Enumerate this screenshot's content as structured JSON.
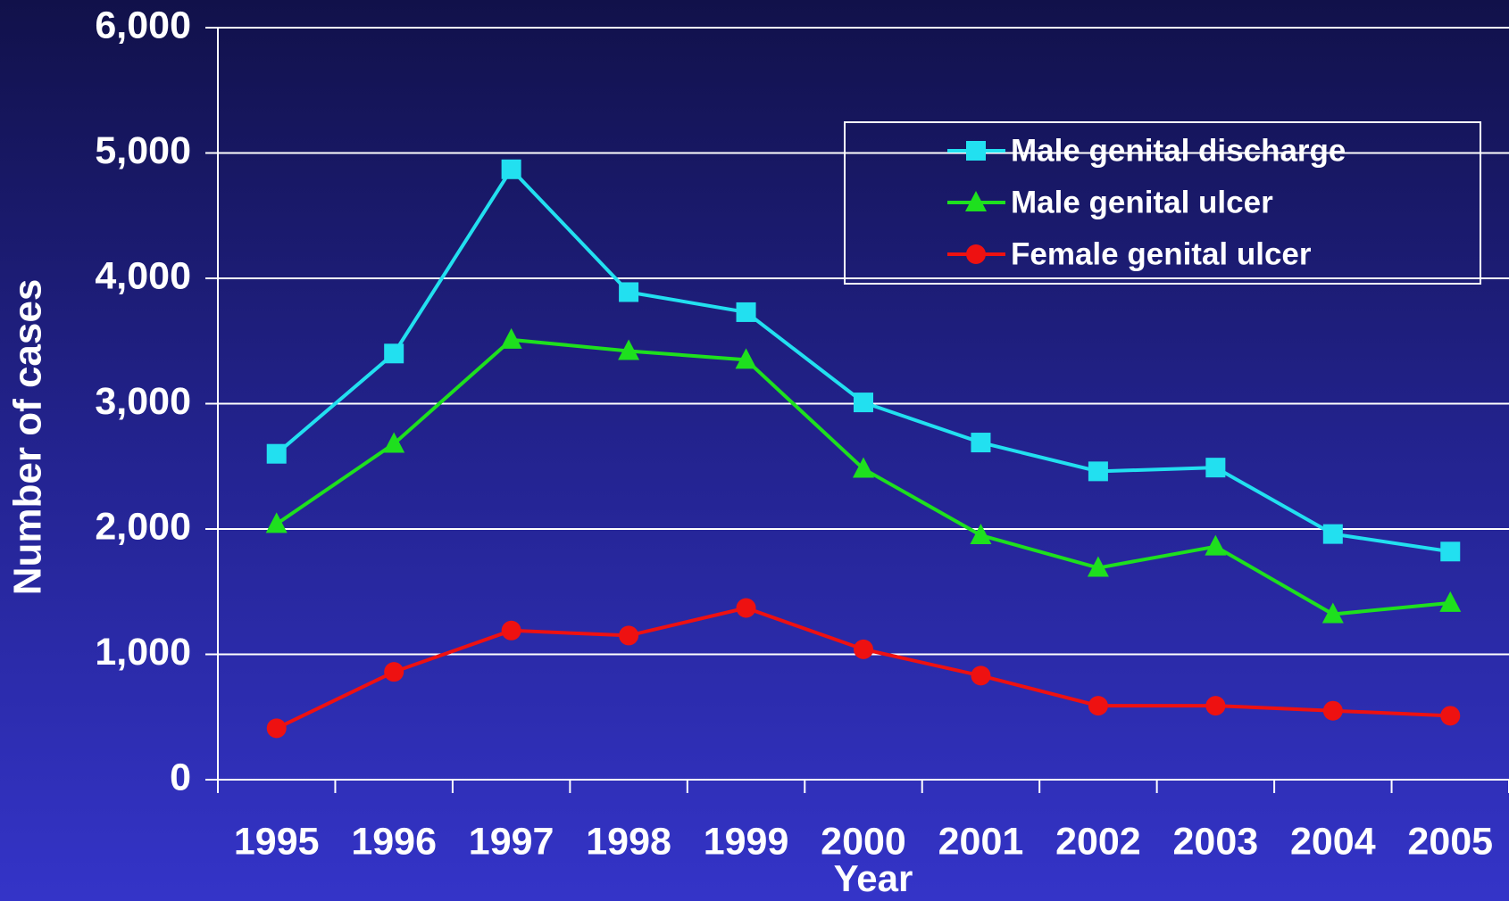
{
  "chart_data": {
    "type": "line",
    "x_label": "Year",
    "y_label": "Number of cases",
    "categories": [
      "1995",
      "1996",
      "1997",
      "1998",
      "1999",
      "2000",
      "2001",
      "2002",
      "2003",
      "2004",
      "2005"
    ],
    "series": [
      {
        "name": "Male genital discharge",
        "color": "#22e0f0",
        "marker": "square",
        "values": [
          2600,
          3400,
          4870,
          3890,
          3730,
          3010,
          2690,
          2460,
          2490,
          1960,
          1820
        ]
      },
      {
        "name": "Male genital ulcer",
        "color": "#1ee01e",
        "marker": "triangle",
        "values": [
          2040,
          2680,
          3510,
          3420,
          3350,
          2480,
          1950,
          1690,
          1860,
          1320,
          1410
        ]
      },
      {
        "name": "Female genital ulcer",
        "color": "#ee1111",
        "marker": "circle",
        "values": [
          410,
          860,
          1190,
          1150,
          1370,
          1040,
          830,
          590,
          590,
          550,
          510
        ]
      }
    ],
    "ylim": [
      0,
      6000
    ],
    "yticks": [
      0,
      {
        "value": 1000,
        "label": "1,000"
      },
      {
        "value": 2000,
        "label": "2,000"
      },
      {
        "value": 3000,
        "label": "3,000"
      },
      {
        "value": 4000,
        "label": "4,000"
      },
      {
        "value": 5000,
        "label": "5,000"
      },
      {
        "value": 6000,
        "label": "6,000"
      }
    ],
    "grid": true,
    "legend": "upper right"
  }
}
